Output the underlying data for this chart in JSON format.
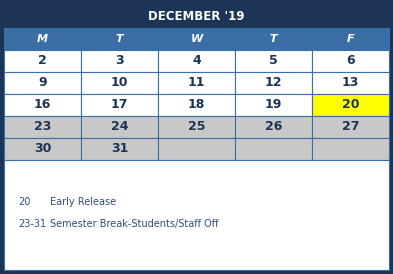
{
  "title": "DECEMBER '19",
  "title_bg": "#1c3557",
  "title_color": "#ffffff",
  "header_days": [
    "M",
    "T",
    "W",
    "T",
    "F"
  ],
  "header_bg": "#3a6ea5",
  "header_color": "#ffffff",
  "weeks": [
    [
      "2",
      "3",
      "4",
      "5",
      "6"
    ],
    [
      "9",
      "10",
      "11",
      "12",
      "13"
    ],
    [
      "16",
      "17",
      "18",
      "19",
      "20"
    ],
    [
      "23",
      "24",
      "25",
      "26",
      "27"
    ],
    [
      "30",
      "31",
      "",
      "",
      ""
    ]
  ],
  "cell_colors": [
    [
      "#ffffff",
      "#ffffff",
      "#ffffff",
      "#ffffff",
      "#ffffff"
    ],
    [
      "#ffffff",
      "#ffffff",
      "#ffffff",
      "#ffffff",
      "#ffffff"
    ],
    [
      "#ffffff",
      "#ffffff",
      "#ffffff",
      "#ffffff",
      "#ffff00"
    ],
    [
      "#c8c8c8",
      "#c8c8c8",
      "#c8c8c8",
      "#c8c8c8",
      "#c8c8c8"
    ],
    [
      "#c8c8c8",
      "#c8c8c8",
      "#c8c8c8",
      "#c8c8c8",
      "#c8c8c8"
    ]
  ],
  "text_color": "#1c3557",
  "border_color": "#3a6ea5",
  "outer_border_color": "#1c3557",
  "legend_lines": [
    [
      "20",
      "Early Release"
    ],
    [
      "23-31",
      "Semester Break-Students/Staff Off"
    ]
  ],
  "legend_color": "#2e4e7e",
  "legend_bg": "#ffffff",
  "figsize": [
    3.93,
    2.74
  ],
  "dpi": 100
}
